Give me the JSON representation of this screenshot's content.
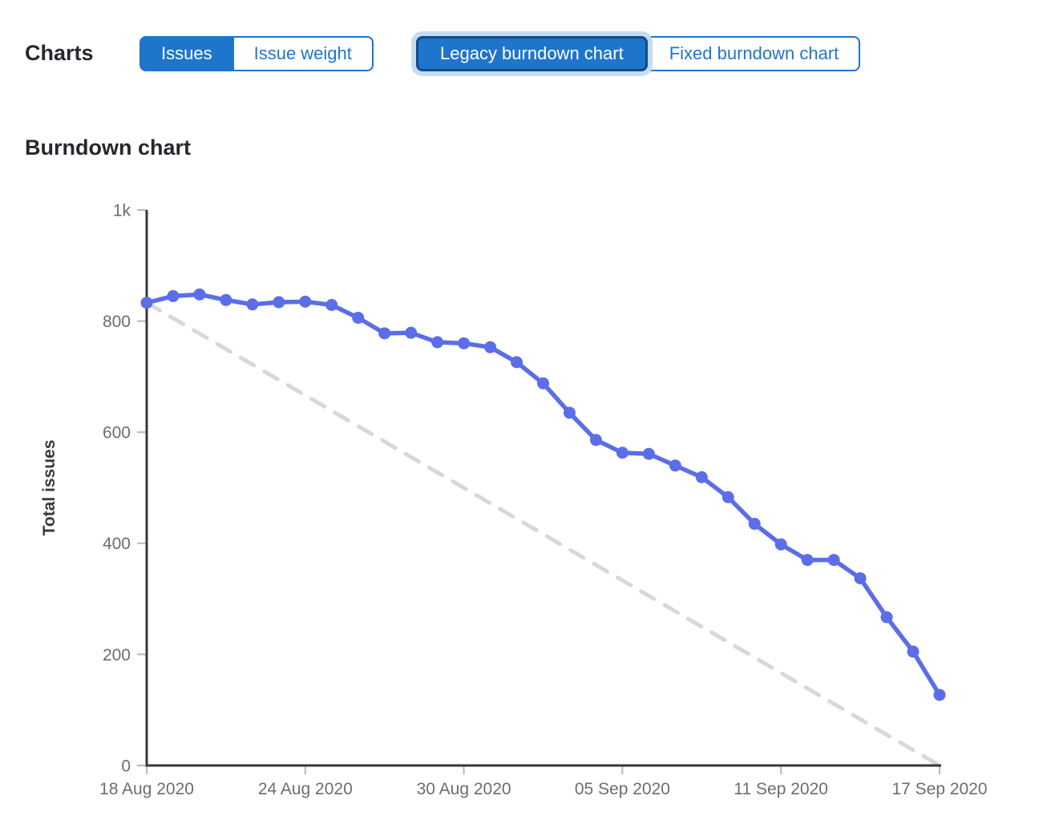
{
  "header": {
    "charts_label": "Charts",
    "metric_toggle": {
      "options": [
        {
          "label": "Issues",
          "selected": true
        },
        {
          "label": "Issue weight",
          "selected": false
        }
      ]
    },
    "chart_type_toggle": {
      "options": [
        {
          "label": "Legacy burndown chart",
          "selected": true,
          "focused": true
        },
        {
          "label": "Fixed burndown chart",
          "selected": false
        }
      ]
    }
  },
  "section": {
    "title": "Burndown chart"
  },
  "chart_data": {
    "type": "line",
    "title": "Burndown chart",
    "xlabel": "",
    "ylabel": "Total issues",
    "ylim": [
      0,
      1000
    ],
    "grid": false,
    "legend_position": "none",
    "x_dates": [
      "18 Aug 2020",
      "19 Aug 2020",
      "20 Aug 2020",
      "21 Aug 2020",
      "22 Aug 2020",
      "23 Aug 2020",
      "24 Aug 2020",
      "25 Aug 2020",
      "26 Aug 2020",
      "27 Aug 2020",
      "28 Aug 2020",
      "29 Aug 2020",
      "30 Aug 2020",
      "31 Aug 2020",
      "01 Sep 2020",
      "02 Sep 2020",
      "03 Sep 2020",
      "04 Sep 2020",
      "05 Sep 2020",
      "06 Sep 2020",
      "07 Sep 2020",
      "08 Sep 2020",
      "09 Sep 2020",
      "10 Sep 2020",
      "11 Sep 2020",
      "12 Sep 2020",
      "13 Sep 2020",
      "14 Sep 2020",
      "15 Sep 2020",
      "16 Sep 2020",
      "17 Sep 2020"
    ],
    "series": [
      {
        "name": "Total issues",
        "style": "solid-line-with-points",
        "color": "#5b6ee8",
        "values": [
          833,
          845,
          848,
          838,
          830,
          834,
          835,
          829,
          806,
          778,
          779,
          762,
          760,
          753,
          726,
          688,
          635,
          586,
          563,
          561,
          540,
          519,
          483,
          435,
          398,
          370,
          370,
          337,
          267,
          205,
          127
        ]
      }
    ],
    "guideline": {
      "name": "guideline",
      "style": "dashed-line",
      "color": "#d8d8d8",
      "start_value": 833,
      "end_value": 0
    },
    "yticks": [
      {
        "value": 0,
        "label": "0"
      },
      {
        "value": 200,
        "label": "200"
      },
      {
        "value": 400,
        "label": "400"
      },
      {
        "value": 600,
        "label": "600"
      },
      {
        "value": 800,
        "label": "800"
      },
      {
        "value": 1000,
        "label": "1k"
      }
    ],
    "xticks": [
      {
        "index": 0,
        "label": "18 Aug 2020"
      },
      {
        "index": 6,
        "label": "24 Aug 2020"
      },
      {
        "index": 12,
        "label": "30 Aug 2020"
      },
      {
        "index": 18,
        "label": "05 Sep 2020"
      },
      {
        "index": 24,
        "label": "11 Sep 2020"
      },
      {
        "index": 30,
        "label": "17 Sep 2020"
      }
    ],
    "colors": {
      "line": "#5b6ee8",
      "guideline": "#d8d8d8",
      "axis": "#36363b",
      "tick_mark": "#b8b8b8",
      "tick_text": "#6d6d71",
      "axis_title_text": "#3a3a3f"
    }
  },
  "colors": {
    "accent_blue": "#1f75cb",
    "focus_ring": "#c7dbf3",
    "focus_border": "#0d4c8f",
    "heading_text": "#28272d"
  }
}
